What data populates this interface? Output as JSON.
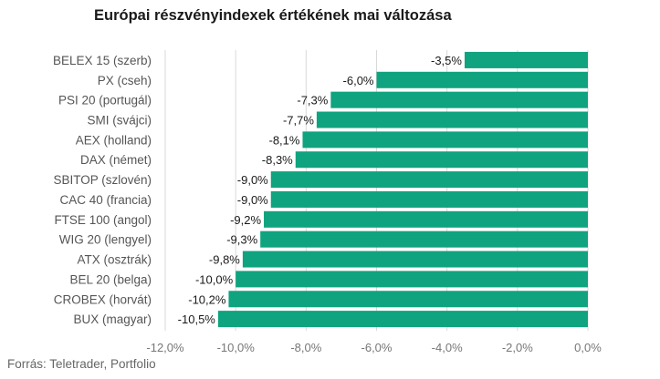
{
  "title": "Európai részvényindexek értékének mai változása",
  "source": "Forrás: Teletrader, Portfolio",
  "colors": {
    "bar": "#0fa37f",
    "grid": "#d9d9d9"
  },
  "chart_data": {
    "type": "bar",
    "orientation": "horizontal",
    "title": "Európai részvényindexek értékének mai változása",
    "categories": [
      "BELEX 15 (szerb)",
      "PX (cseh)",
      "PSI 20 (portugál)",
      "SMI (svájci)",
      "AEX (holland)",
      "DAX (német)",
      "SBITOP (szlovén)",
      "CAC 40 (francia)",
      "FTSE 100 (angol)",
      "WIG 20 (lengyel)",
      "ATX (osztrák)",
      "BEL 20 (belga)",
      "CROBEX (horvát)",
      "BUX (magyar)"
    ],
    "values": [
      -3.5,
      -6.0,
      -7.3,
      -7.7,
      -8.1,
      -8.3,
      -9.0,
      -9.0,
      -9.2,
      -9.3,
      -9.8,
      -10.0,
      -10.2,
      -10.5
    ],
    "value_labels": [
      "-3,5%",
      "-6,0%",
      "-7,3%",
      "-7,7%",
      "-8,1%",
      "-8,3%",
      "-9,0%",
      "-9,0%",
      "-9,2%",
      "-9,3%",
      "-9,8%",
      "-10,0%",
      "-10,2%",
      "-10,5%"
    ],
    "xlim": [
      -12,
      0
    ],
    "xticks": [
      -12,
      -10,
      -8,
      -6,
      -4,
      -2,
      0
    ],
    "xtick_labels": [
      "-12,0%",
      "-10,0%",
      "-8,0%",
      "-6,0%",
      "-4,0%",
      "-2,0%",
      "0,0%"
    ],
    "grid": true,
    "legend": false
  }
}
